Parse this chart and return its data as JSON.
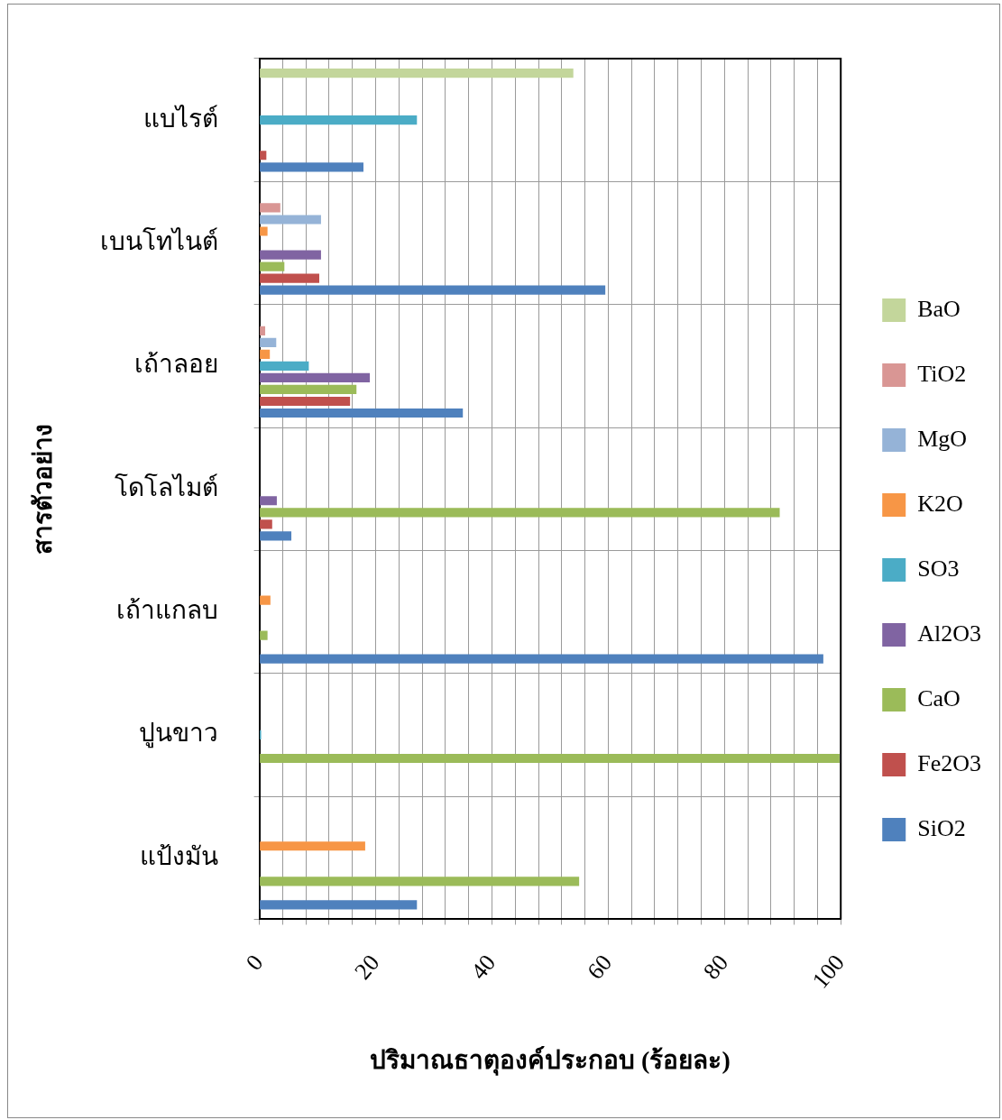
{
  "chart_data": {
    "type": "bar",
    "orientation": "horizontal",
    "xlabel": "ปริมาณธาตุองค์ประกอบ (ร้อยละ)",
    "ylabel": "สารตัวอย่าง",
    "categories": [
      "แบไรต์",
      "เบนโทไนต์",
      "เถ้าลอย",
      "โดโลไมต์",
      "เถ้าแกลบ",
      "ปูนขาว",
      "แป้งมัน"
    ],
    "series": [
      {
        "name": "BaO",
        "color": "#c3d69b",
        "values": [
          54.0,
          null,
          null,
          null,
          null,
          null,
          null
        ]
      },
      {
        "name": "TiO2",
        "color": "#d99694",
        "values": [
          null,
          3.6,
          1.0,
          null,
          null,
          null,
          null
        ]
      },
      {
        "name": "MgO",
        "color": "#95b3d7",
        "values": [
          null,
          10.6,
          2.9,
          null,
          null,
          null,
          null
        ]
      },
      {
        "name": "K2O",
        "color": "#f79646",
        "values": [
          null,
          1.4,
          1.8,
          null,
          1.9,
          null,
          18.2
        ]
      },
      {
        "name": "SO3",
        "color": "#4bacc6",
        "values": [
          27.1,
          null,
          8.5,
          null,
          null,
          0.3,
          null
        ]
      },
      {
        "name": "Al2O3",
        "color": "#8064a2",
        "values": [
          null,
          10.6,
          19.0,
          3.0,
          null,
          null,
          null
        ]
      },
      {
        "name": "CaO",
        "color": "#9bbb59",
        "values": [
          null,
          4.3,
          16.7,
          89.5,
          1.4,
          99.8,
          55.0
        ]
      },
      {
        "name": "Fe2O3",
        "color": "#c0504d",
        "values": [
          1.2,
          10.3,
          15.6,
          2.2,
          null,
          null,
          null
        ]
      },
      {
        "name": "SiO2",
        "color": "#4f81bd",
        "values": [
          17.9,
          59.5,
          35.0,
          5.5,
          97.0,
          null,
          27.1
        ]
      }
    ],
    "xlim": [
      0,
      100
    ],
    "xticks": [
      0,
      {
        "value": 4,
        "label": null
      },
      {
        "value": 8,
        "label": null
      },
      {
        "value": 12,
        "label": null
      },
      {
        "value": 16,
        "label": null
      },
      20,
      {
        "value": 24,
        "label": null
      },
      {
        "value": 28,
        "label": null
      },
      {
        "value": 32,
        "label": null
      },
      {
        "value": 36,
        "label": null
      },
      40,
      {
        "value": 44,
        "label": null
      },
      {
        "value": 48,
        "label": null
      },
      {
        "value": 52,
        "label": null
      },
      {
        "value": 56,
        "label": null
      },
      60,
      {
        "value": 64,
        "label": null
      },
      {
        "value": 68,
        "label": null
      },
      {
        "value": 72,
        "label": null
      },
      {
        "value": 76,
        "label": null
      },
      80,
      {
        "value": 84,
        "label": null
      },
      {
        "value": 88,
        "label": null
      },
      {
        "value": 92,
        "label": null
      },
      {
        "value": 96,
        "label": null
      },
      100
    ],
    "grid": true,
    "legend": "right"
  }
}
